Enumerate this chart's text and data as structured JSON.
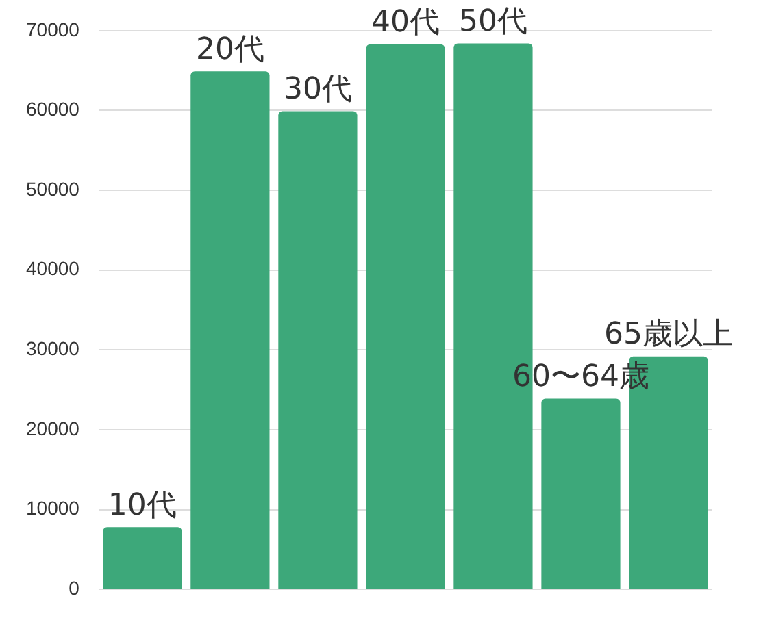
{
  "chart_data": {
    "type": "bar",
    "categories": [
      "10代",
      "20代",
      "30代",
      "40代",
      "50代",
      "60〜64歳",
      "65歳以上"
    ],
    "values": [
      7800,
      64900,
      59900,
      68300,
      68400,
      23900,
      29200
    ],
    "color": "#3da87a",
    "ylim": [
      0,
      70000
    ],
    "yticks": [
      0,
      10000,
      20000,
      30000,
      40000,
      50000,
      60000,
      70000
    ],
    "grid": "y",
    "tick_labels": "y",
    "legend": false
  }
}
